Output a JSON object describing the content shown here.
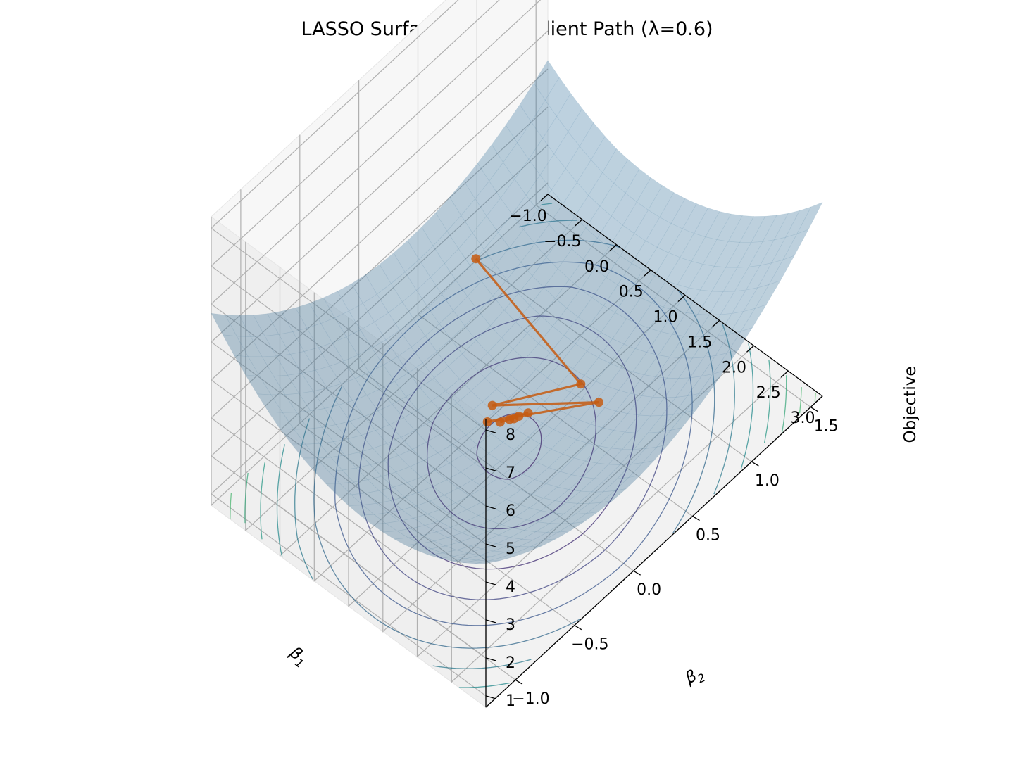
{
  "chart_data": {
    "type": "surface3d",
    "title": "LASSO Surface + Subgradient Path (λ=0.6)",
    "x_axis": {
      "label": "β₁",
      "label_main": "β",
      "label_sub": "1",
      "range": [
        -1.0,
        3.0
      ],
      "ticks": [
        "−1.0",
        "−0.5",
        "0.0",
        "0.5",
        "1.0",
        "1.5",
        "2.0",
        "2.5",
        "3.0"
      ]
    },
    "y_axis": {
      "label": "β₂",
      "label_main": "β",
      "label_sub": "2",
      "range": [
        -1.25,
        1.6
      ],
      "ticks": [
        "−1.0",
        "−0.5",
        "0.0",
        "0.5",
        "1.0",
        "1.5"
      ]
    },
    "z_axis": {
      "label": "Objective",
      "range": [
        0.7,
        8.3
      ],
      "ticks": [
        "1",
        "2",
        "3",
        "4",
        "5",
        "6",
        "7",
        "8"
      ]
    },
    "surface": {
      "color": "#1f77b4",
      "opacity": 0.35,
      "objective_center": [
        1.0,
        0.2
      ],
      "objective_min": 1.15
    },
    "contour_levels": [
      1.3,
      1.6,
      2.0,
      2.4,
      2.8,
      3.2,
      3.6,
      4.0,
      4.4,
      4.8,
      5.2,
      5.6,
      6.0,
      6.4,
      6.8,
      7.2
    ],
    "path": {
      "color": "#c55a11",
      "points": [
        {
          "b1": -0.5,
          "b2": 0.7
        },
        {
          "b1": 1.2,
          "b2": 0.6
        },
        {
          "b1": 0.6,
          "b2": 0.2
        },
        {
          "b1": 1.55,
          "b2": 0.55
        },
        {
          "b1": 0.7,
          "b2": 0.1
        },
        {
          "b1": 0.95,
          "b2": 0.3
        },
        {
          "b1": 0.8,
          "b2": 0.15
        },
        {
          "b1": 0.9,
          "b2": 0.25
        },
        {
          "b1": 0.85,
          "b2": 0.2
        },
        {
          "b1": 0.88,
          "b2": 0.22
        }
      ]
    },
    "grid": true
  }
}
